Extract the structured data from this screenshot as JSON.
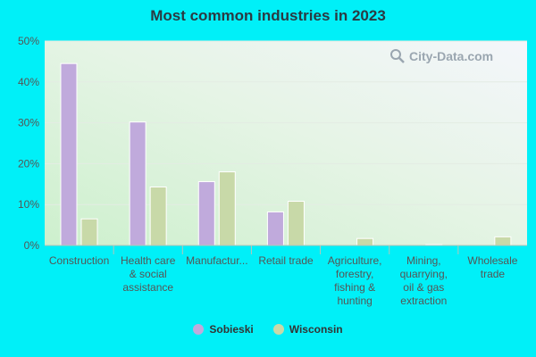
{
  "chart_data": {
    "type": "bar",
    "title": "Most common industries in 2023",
    "categories": [
      [
        "Construction"
      ],
      [
        "Health care",
        "& social",
        "assistance"
      ],
      [
        "Manufactur..."
      ],
      [
        "Retail trade"
      ],
      [
        "Agriculture,",
        "forestry,",
        "fishing &",
        "hunting"
      ],
      [
        "Mining,",
        "quarrying,",
        "oil & gas",
        "extraction"
      ],
      [
        "Wholesale",
        "trade"
      ]
    ],
    "series": [
      {
        "name": "Sobieski",
        "color": "#c0aadc",
        "values": [
          44.5,
          30.2,
          15.6,
          8.2,
          0,
          0,
          0
        ]
      },
      {
        "name": "Wisconsin",
        "color": "#c8d9a8",
        "values": [
          6.5,
          14.3,
          18.0,
          10.8,
          1.7,
          0.2,
          2.1
        ]
      }
    ],
    "y_ticks": [
      "0%",
      "10%",
      "20%",
      "30%",
      "40%",
      "50%"
    ],
    "ylim": [
      0,
      50
    ],
    "xlabel": "",
    "ylabel": ""
  },
  "watermark": {
    "text": "City-Data.com"
  }
}
